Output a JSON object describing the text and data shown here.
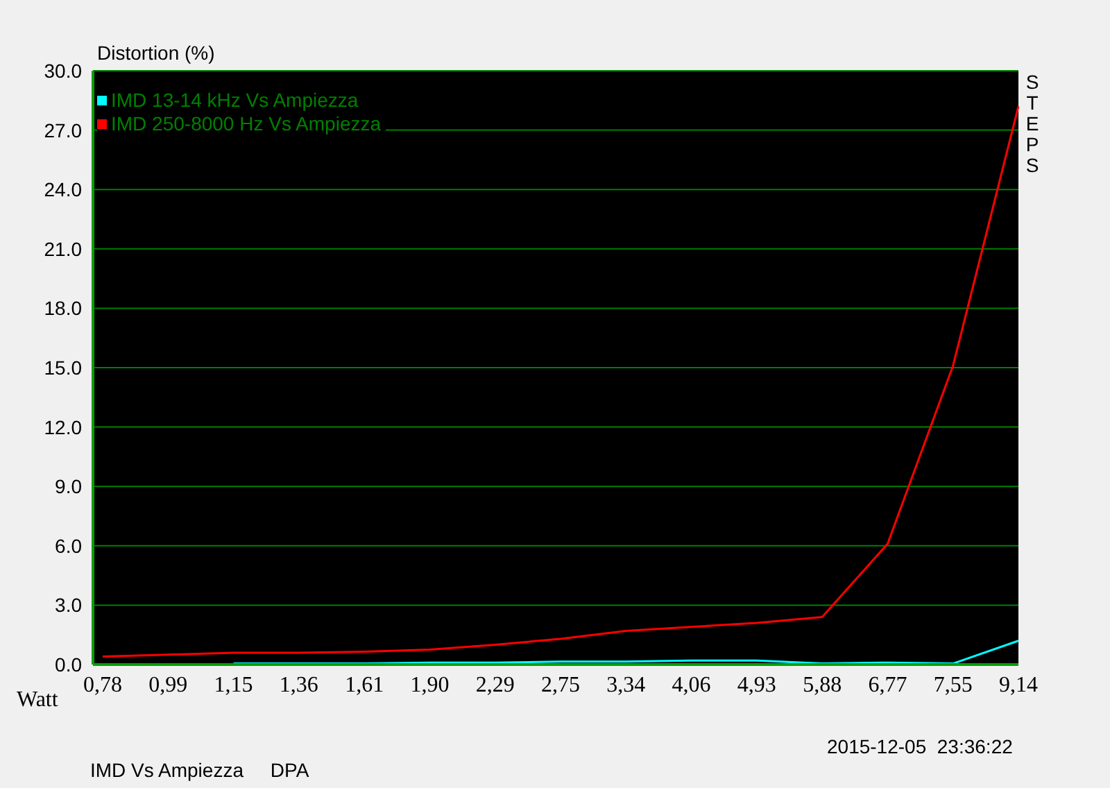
{
  "chart_data": {
    "type": "line",
    "categories": [
      "0,78",
      "0,99",
      "1,15",
      "1,36",
      "1,61",
      "1,90",
      "2,29",
      "2,75",
      "3,34",
      "4,06",
      "4,93",
      "5,88",
      "6,77",
      "7,55",
      "9,14"
    ],
    "series": [
      {
        "name": "IMD 13-14 kHz Vs Ampiezza",
        "color": "#00ffff",
        "values": [
          null,
          null,
          0.05,
          0.05,
          0.05,
          0.1,
          0.1,
          0.15,
          0.15,
          0.2,
          0.2,
          0.05,
          0.1,
          0.05,
          1.2
        ]
      },
      {
        "name": "IMD 250-8000 Hz Vs Ampiezza",
        "color": "#ff0000",
        "values": [
          0.4,
          0.5,
          0.6,
          0.6,
          0.65,
          0.75,
          1.0,
          1.3,
          1.7,
          1.9,
          2.1,
          2.4,
          6.1,
          15.1,
          28.2
        ]
      }
    ],
    "ylim": [
      0,
      30
    ],
    "yticks": [
      {
        "value": 0,
        "label": "0.0"
      },
      {
        "value": 3,
        "label": "3.0"
      },
      {
        "value": 6,
        "label": "6.0"
      },
      {
        "value": 9,
        "label": "9.0"
      },
      {
        "value": 12,
        "label": "12.0"
      },
      {
        "value": 15,
        "label": "15.0"
      },
      {
        "value": 18,
        "label": "18.0"
      },
      {
        "value": 21,
        "label": "21.0"
      },
      {
        "value": 24,
        "label": "24.0"
      },
      {
        "value": 27,
        "label": "27.0"
      },
      {
        "value": 30,
        "label": "30.0"
      }
    ],
    "grid": "y",
    "legend": "top left",
    "marker": "none",
    "annotations": [
      "STEPS",
      "2015-12-05  23:36:22",
      "IMD Vs Ampiezza     DPA",
      "Distortion (%)",
      "Watt"
    ]
  }
}
